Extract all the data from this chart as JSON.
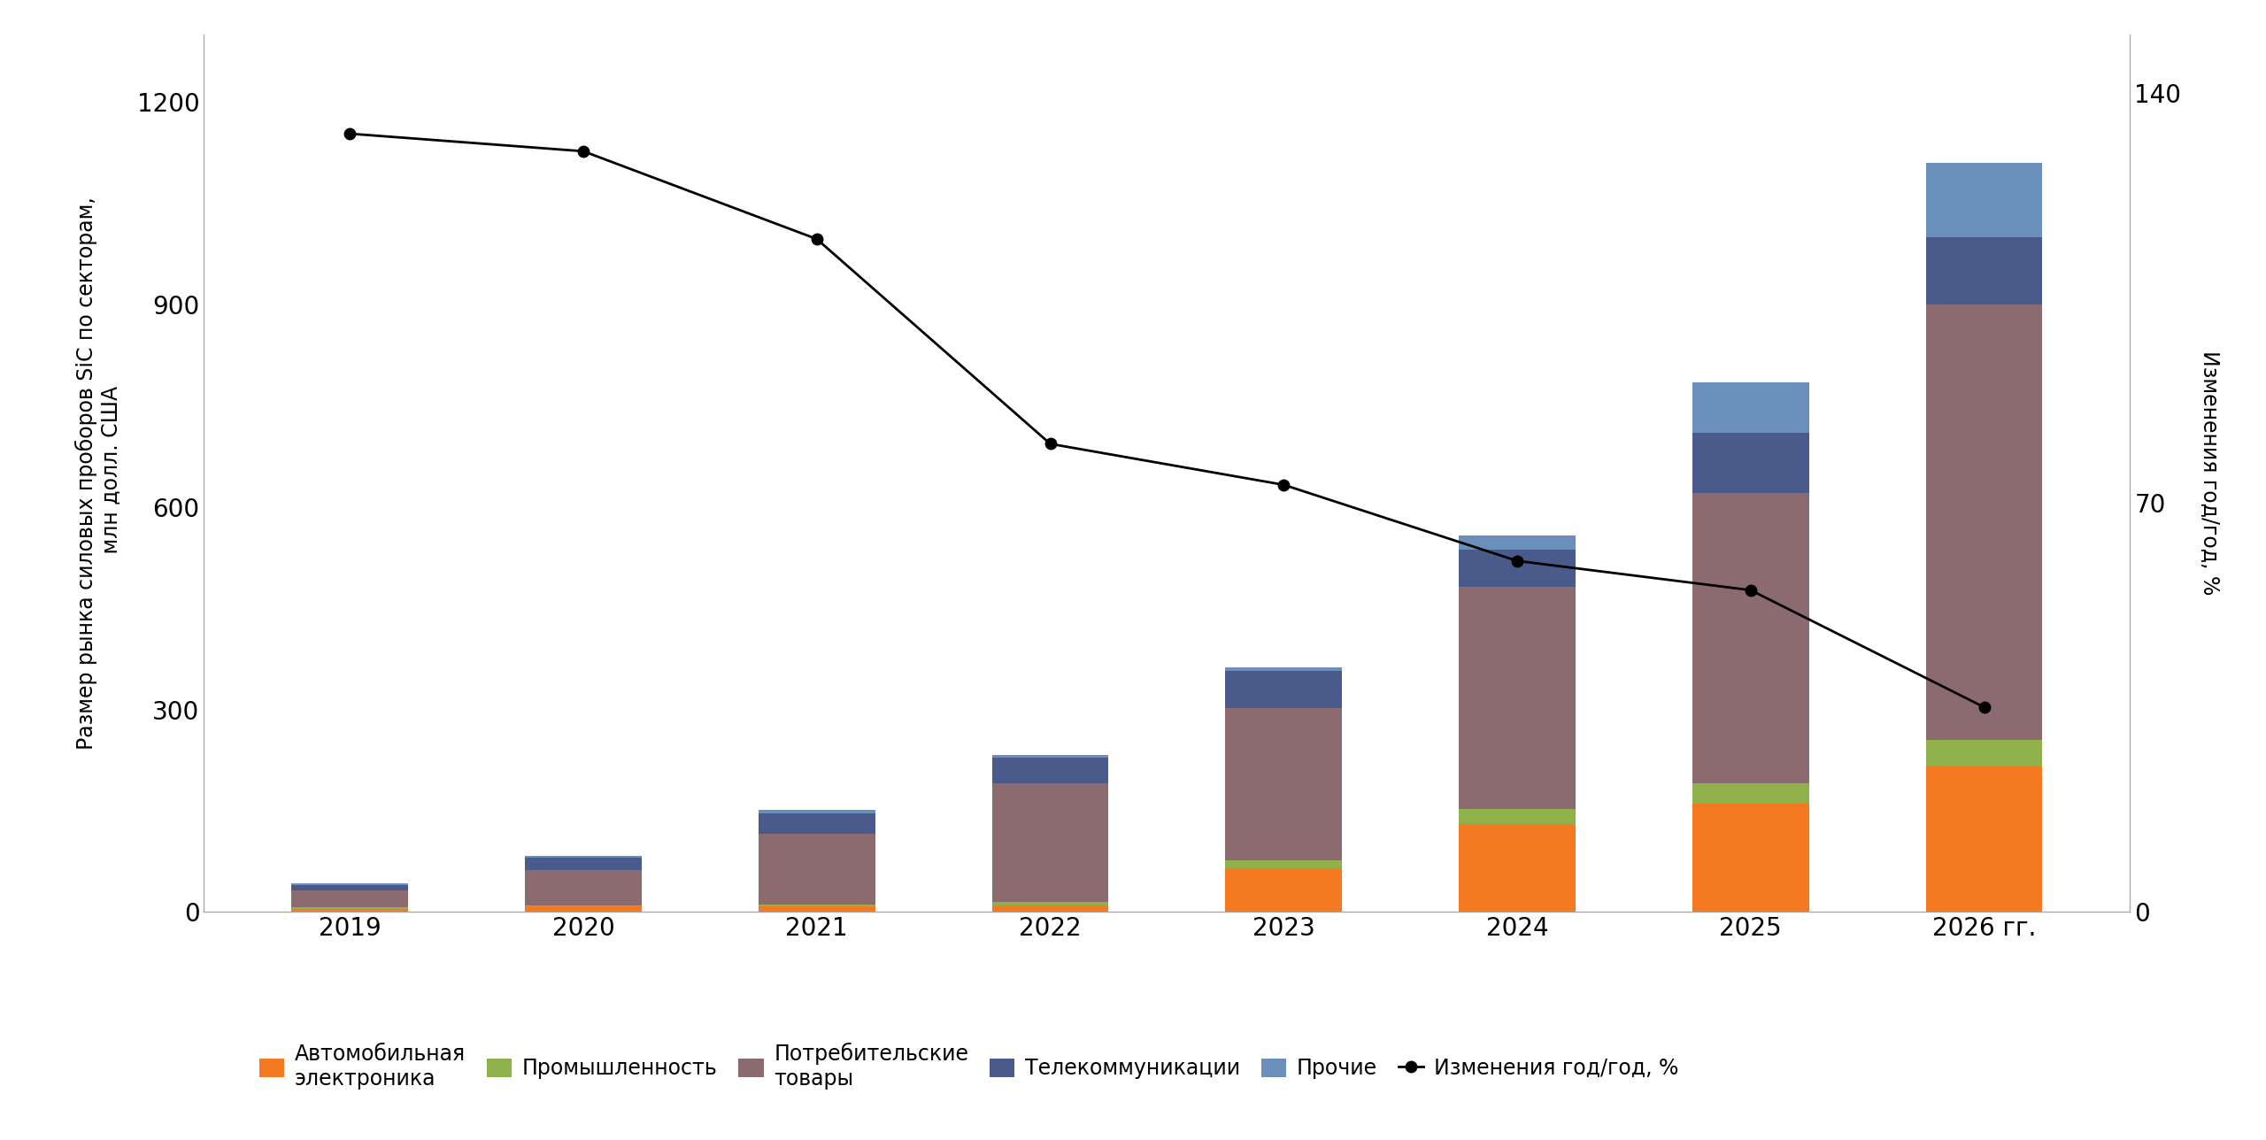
{
  "years": [
    "2019",
    "2020",
    "2021",
    "2022",
    "2023",
    "2024",
    "2025",
    "2026 гг."
  ],
  "bar_data": {
    "Автомобильная электроника": [
      5,
      8,
      8,
      10,
      65,
      130,
      160,
      215
    ],
    "Промышленность": [
      2,
      2,
      3,
      5,
      12,
      22,
      30,
      40
    ],
    "Потребительские товары": [
      25,
      52,
      105,
      175,
      225,
      330,
      430,
      645
    ],
    "Телекоммуникации": [
      8,
      18,
      30,
      38,
      55,
      55,
      90,
      100
    ],
    "Прочие": [
      2,
      3,
      5,
      5,
      5,
      20,
      75,
      110
    ]
  },
  "bar_colors": {
    "Автомобильная электроника": "#F47920",
    "Промышленность": "#8FB04A",
    "Потребительские товары": "#8B6A70",
    "Телекоммуникации": "#4A5A8A",
    "Прочие": "#6A8FBA"
  },
  "line_data": [
    133,
    130,
    115,
    80,
    73,
    60,
    55,
    35
  ],
  "line_label": "Изменения год/год, %",
  "left_ylabel": "Размер рынка силовых проборов SiC по секторам,\n млн долл. США",
  "right_ylabel": "Изменения год/год, %",
  "ylim_left": [
    0,
    1300
  ],
  "ylim_right": [
    0,
    150
  ],
  "yticks_left": [
    0,
    300,
    600,
    900,
    1200
  ],
  "yticks_right": [
    0,
    70,
    140
  ],
  "background_color": "#ffffff",
  "legend_labels": [
    "Автомобильная\nэлектроника",
    "Промышленность",
    "Потребительские\nтовары",
    "Телекоммуникации",
    "Прочие",
    "Изменения год/год, %"
  ],
  "legend_colors": [
    "#F47920",
    "#8FB04A",
    "#8B6A70",
    "#4A5A8A",
    "#6A8FBA",
    "black"
  ]
}
